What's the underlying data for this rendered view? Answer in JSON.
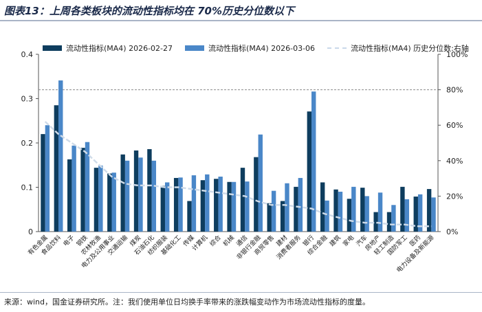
{
  "title": "图表13：上周各类板块的流动性指标均在 70%历史分位数以下",
  "footer": "来源：wind，国金证券研究所。注：我们使用单位日均换手率带来的涨跌幅变动作为市场流动性指标的度量。",
  "colors": {
    "series1": "#0e3d5e",
    "series2": "#4a87c8",
    "series3": "#cfdbe9",
    "ref": "#8a8a8a"
  },
  "chart_data": {
    "type": "bar",
    "categories": [
      "有色金属",
      "食品饮料",
      "电子",
      "钢铁",
      "农林牧渔",
      "电力及公用事业",
      "交通运输",
      "煤炭",
      "石油石化",
      "纺织服装",
      "基础化工",
      "传媒",
      "计算机",
      "综合",
      "机械",
      "通信",
      "非银行金融",
      "商贸零售",
      "建材",
      "消费者服务",
      "银行",
      "综合金融",
      "建筑",
      "家电",
      "汽车",
      "房地产",
      "轻工制造",
      "国防军工",
      "医药",
      "电力设备及新能源"
    ],
    "series": [
      {
        "name": "流动性指标(MA4) 2026-02-27",
        "axis": "left",
        "values": [
          0.22,
          0.285,
          0.163,
          0.189,
          0.144,
          0.131,
          0.174,
          0.183,
          0.186,
          0.103,
          0.121,
          0.069,
          0.116,
          0.119,
          0.112,
          0.144,
          0.168,
          0.064,
          0.069,
          0.101,
          0.271,
          0.111,
          0.095,
          0.074,
          0.099,
          0.044,
          0.044,
          0.101,
          0.079,
          0.096
        ]
      },
      {
        "name": "流动性指标(MA4) 2026-03-06",
        "axis": "left",
        "values": [
          0.24,
          0.341,
          0.194,
          0.202,
          0.149,
          0.133,
          0.16,
          0.167,
          0.16,
          0.111,
          0.122,
          0.127,
          0.129,
          0.124,
          0.112,
          0.113,
          0.219,
          0.092,
          0.109,
          0.121,
          0.316,
          0.07,
          0.09,
          0.101,
          0.08,
          0.088,
          0.06,
          0.073,
          0.084,
          0.077
        ]
      },
      {
        "name": "流动性指标(MA4) 历史分位数:右轴",
        "axis": "right",
        "type": "line",
        "values": [
          0.62,
          0.55,
          0.5,
          0.45,
          0.38,
          0.31,
          0.27,
          0.26,
          0.26,
          0.25,
          0.25,
          0.24,
          0.23,
          0.22,
          0.21,
          0.2,
          0.17,
          0.15,
          0.15,
          0.14,
          0.13,
          0.1,
          0.08,
          0.06,
          0.05,
          0.05,
          0.04,
          0.04,
          0.03,
          0.03
        ]
      }
    ],
    "y_left": {
      "ylim": [
        0,
        0.4
      ],
      "ticks": [
        "0",
        "0.1",
        "0.2",
        "0.3",
        "0.4"
      ]
    },
    "y_right": {
      "ylim": [
        0,
        1.0
      ],
      "ticks": [
        "0%",
        "20%",
        "40%",
        "60%",
        "80%",
        "100%"
      ]
    },
    "reference_line": {
      "axis": "right",
      "value": 0.8
    },
    "legend_position": "top",
    "grid": false
  }
}
